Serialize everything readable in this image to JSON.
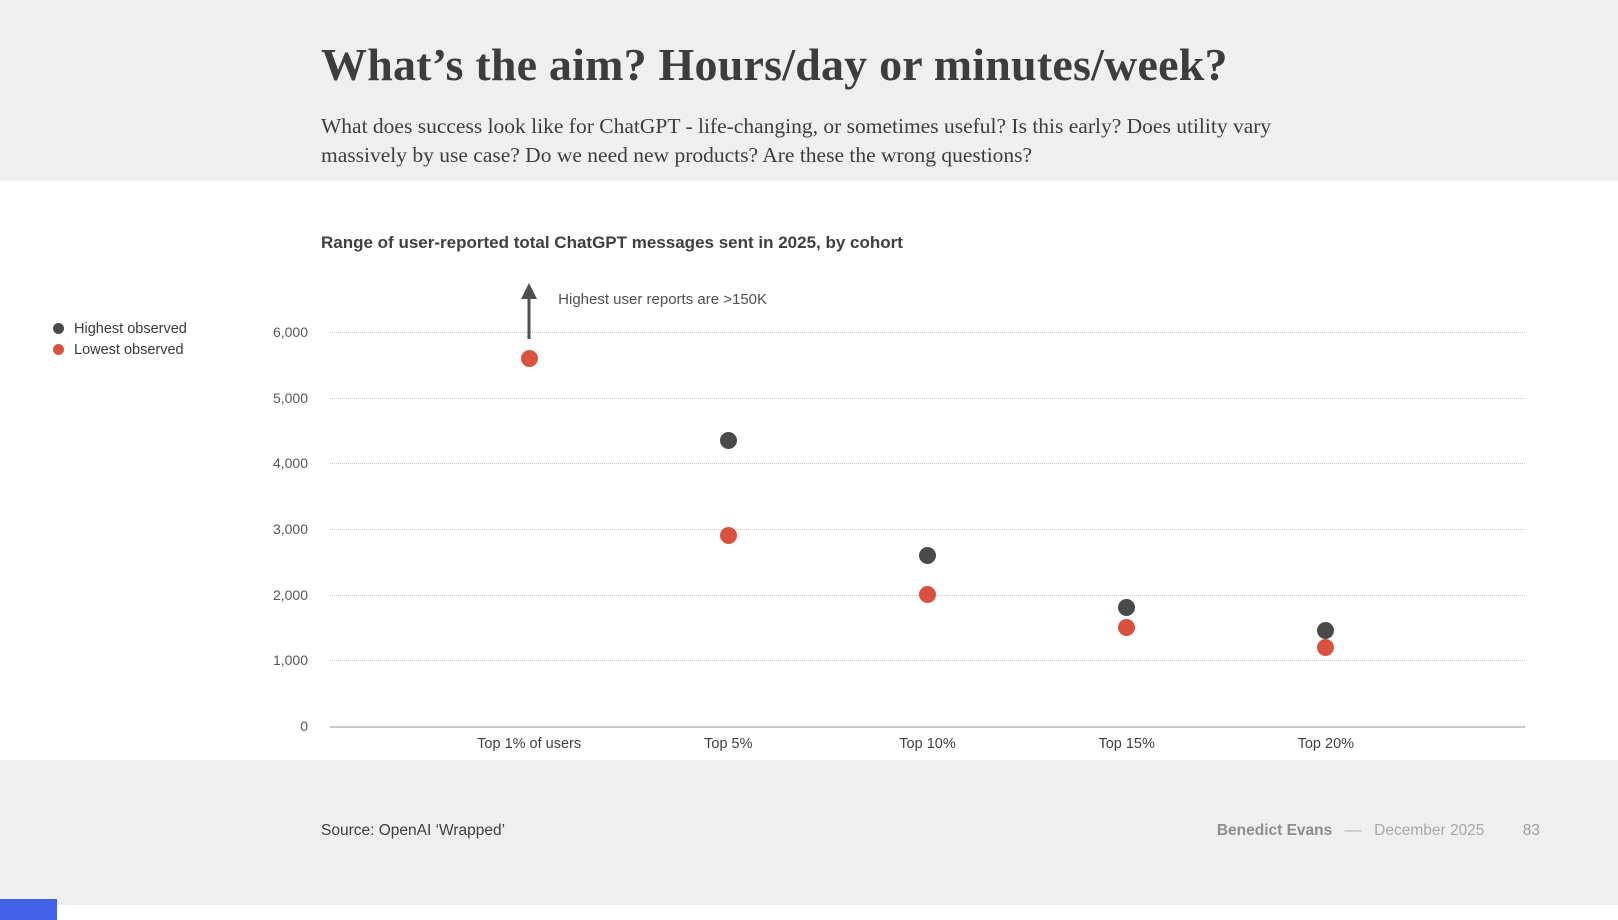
{
  "slide": {
    "title": "What’s the aim? Hours/day or minutes/week?",
    "subtitle_lines": [
      "What does success look like for ChatGPT - life-changing, or sometimes useful? Is this early? Does utility vary",
      "massively by use case? Do we need new products? Are these the wrong questions?"
    ]
  },
  "chart": {
    "title": "Range of user-reported total ChatGPT messages sent in 2025, by cohort"
  },
  "legend": {
    "items": [
      {
        "label": "Highest observed",
        "color": "#4a4a4a",
        "icon": "highest-observed-dot-icon"
      },
      {
        "label": "Lowest observed",
        "color": "#d9513f",
        "icon": "lowest-observed-dot-icon"
      }
    ]
  },
  "chart_data": {
    "type": "scatter",
    "title": "Range of user-reported total ChatGPT messages sent in 2025, by cohort",
    "categories": [
      "Top 1% of users",
      "Top 5%",
      "Top 10%",
      "Top 15%",
      "Top 20%"
    ],
    "series": [
      {
        "name": "Highest observed",
        "color": "#4a4a4a",
        "values": [
          null,
          4350,
          2600,
          1800,
          1450
        ],
        "offscale_note": "Top 1% highest observed is >150K, above the axis; shown as an upward arrow"
      },
      {
        "name": "Lowest observed",
        "color": "#d9513f",
        "values": [
          5600,
          2900,
          2000,
          1500,
          1200
        ]
      }
    ],
    "ylim": [
      0,
      6000
    ],
    "yticks": [
      0,
      1000,
      2000,
      3000,
      4000,
      5000,
      6000
    ],
    "ytick_labels": [
      "0",
      "1,000",
      "2,000",
      "3,000",
      "4,000",
      "5,000",
      "6,000"
    ],
    "grid": "horizontal-dotted",
    "legend_position": "left",
    "annotation": {
      "text": "Highest user reports are >150K",
      "category": "Top 1% of users",
      "style": "up-arrow-offscale"
    }
  },
  "footer": {
    "source": "Source: OpenAI ‘Wrapped’",
    "author": "Benedict Evans",
    "separator": "––",
    "date": "December 2025",
    "page": "83"
  },
  "colors": {
    "band_background": "#efefef",
    "slide_background": "#ffffff",
    "text_dark": "#3d3d3d",
    "highest_dot": "#4a4a4a",
    "lowest_dot": "#d9513f",
    "gridline": "#c7c7c7",
    "arrow": "#4f4f4f",
    "progress_bar": "#4260e8"
  }
}
